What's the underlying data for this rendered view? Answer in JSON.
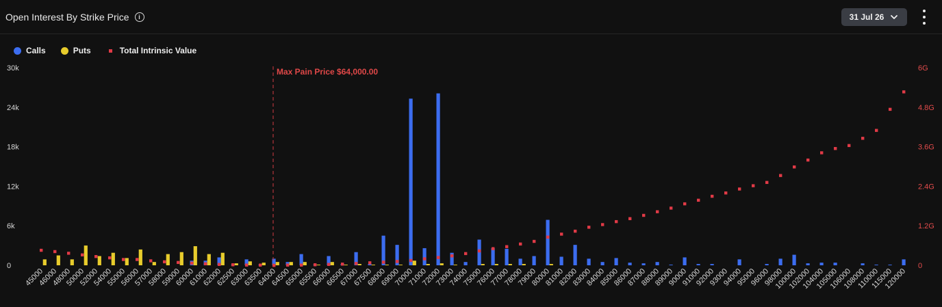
{
  "header": {
    "title": "Open Interest By Strike Price",
    "date_label": "31 Jul 26"
  },
  "colors": {
    "calls": "#3c6df0",
    "puts": "#e8cc2c",
    "intrinsic": "#e03a46",
    "maxpain": "#d43c44",
    "background": "#111111"
  },
  "legend": [
    {
      "label": "Calls",
      "color": "#3c6df0",
      "shape": "circle"
    },
    {
      "label": "Puts",
      "color": "#e8cc2c",
      "shape": "circle"
    },
    {
      "label": "Total Intrinsic Value",
      "color": "#e03a46",
      "shape": "square"
    }
  ],
  "chart_data": {
    "type": "bar",
    "title": "Open Interest By Strike Price",
    "categories": [
      "45000",
      "46000",
      "48000",
      "50000",
      "52000",
      "54000",
      "55000",
      "56000",
      "57000",
      "58000",
      "59000",
      "60000",
      "61000",
      "62000",
      "62500",
      "63000",
      "63500",
      "64000",
      "64500",
      "65000",
      "65500",
      "66000",
      "66500",
      "67000",
      "67500",
      "68000",
      "69000",
      "70000",
      "71000",
      "72000",
      "73000",
      "74000",
      "75000",
      "76000",
      "77000",
      "78000",
      "79000",
      "80000",
      "81000",
      "82000",
      "83000",
      "84000",
      "85000",
      "86000",
      "87000",
      "88000",
      "89000",
      "90000",
      "91000",
      "92000",
      "93000",
      "94000",
      "95000",
      "96000",
      "98000",
      "100000",
      "102000",
      "104000",
      "105000",
      "106000",
      "108000",
      "110000",
      "115000",
      "120000"
    ],
    "series": [
      {
        "name": "Calls",
        "axis": "left",
        "values": [
          0,
          0,
          0,
          0,
          0,
          0,
          0,
          0,
          0,
          0,
          0,
          700,
          700,
          1200,
          100,
          900,
          100,
          1000,
          500,
          1700,
          100,
          1400,
          200,
          2000,
          200,
          4500,
          3100,
          25300,
          2600,
          26100,
          1900,
          500,
          3900,
          2600,
          2500,
          1000,
          1400,
          6900,
          1300,
          3100,
          1000,
          500,
          1100,
          400,
          300,
          500,
          100,
          1200,
          200,
          200,
          0,
          900,
          0,
          200,
          1000,
          1600,
          300,
          400,
          400,
          0,
          300,
          100,
          100,
          900
        ]
      },
      {
        "name": "Puts",
        "axis": "left",
        "values": [
          900,
          1500,
          900,
          3000,
          1400,
          1900,
          1100,
          2400,
          500,
          1700,
          2000,
          2900,
          1700,
          1900,
          300,
          600,
          400,
          500,
          500,
          500,
          100,
          500,
          100,
          200,
          100,
          100,
          100,
          700,
          200,
          300,
          100,
          0,
          200,
          200,
          200,
          200,
          0,
          200,
          0,
          0,
          0,
          0,
          0,
          0,
          0,
          0,
          0,
          0,
          0,
          0,
          0,
          0,
          0,
          0,
          0,
          0,
          0,
          0,
          0,
          0,
          0,
          0,
          0,
          0
        ]
      },
      {
        "name": "Total Intrinsic Value",
        "axis": "right",
        "kind": "scatter",
        "values": [
          0.46,
          0.42,
          0.37,
          0.32,
          0.27,
          0.23,
          0.18,
          0.18,
          0.14,
          0.11,
          0.09,
          0.07,
          0.05,
          0.03,
          0.02,
          0.01,
          0.01,
          0,
          0.01,
          0.01,
          0.02,
          0.03,
          0.04,
          0.06,
          0.08,
          0.1,
          0.12,
          0.15,
          0.2,
          0.24,
          0.29,
          0.36,
          0.44,
          0.51,
          0.57,
          0.65,
          0.73,
          0.86,
          0.95,
          1.04,
          1.16,
          1.24,
          1.33,
          1.42,
          1.52,
          1.63,
          1.74,
          1.87,
          1.98,
          2.1,
          2.2,
          2.32,
          2.42,
          2.52,
          2.73,
          2.99,
          3.2,
          3.42,
          3.55,
          3.64,
          3.86,
          4.1,
          4.74,
          5.27
        ]
      }
    ],
    "y_left": {
      "ylim": [
        0,
        30000
      ],
      "ticks": [
        0,
        6000,
        12000,
        18000,
        24000,
        30000
      ],
      "tick_labels": [
        "0",
        "6k",
        "12k",
        "18k",
        "24k",
        "30k"
      ]
    },
    "y_right": {
      "unit": "G",
      "ylim": [
        0,
        6
      ],
      "ticks": [
        0,
        1.2,
        2.4,
        3.6,
        4.8,
        6
      ],
      "tick_labels": [
        "0",
        "1.2G",
        "2.4G",
        "3.6G",
        "4.8G",
        "6G"
      ]
    },
    "annotations": [
      {
        "type": "vline",
        "category": "64000",
        "label": "Max Pain Price $64,000.00"
      }
    ],
    "legend_position": "top-left",
    "grid": false
  }
}
